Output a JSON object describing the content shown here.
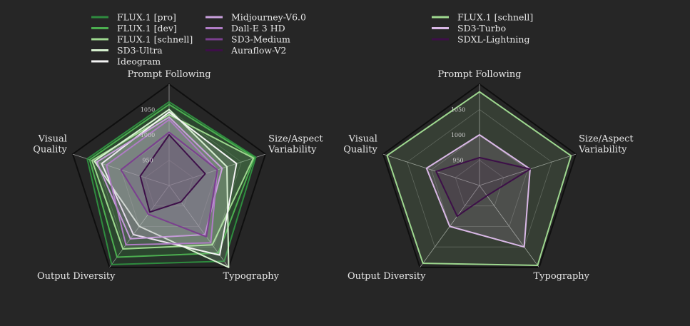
{
  "colors": {
    "background": "#262626",
    "grid": "#0f0f0f",
    "axis_line": "#bdbdbd",
    "text": "#e6e6e6"
  },
  "chart_data": [
    {
      "type": "radar",
      "axes": [
        "Prompt Following",
        "Size/Aspect Variability",
        "Typography",
        "Output Diversity",
        "Visual Quality"
      ],
      "axis_labels": [
        [
          "Prompt Following"
        ],
        [
          "Size/Aspect",
          "Variability"
        ],
        [
          "Typography"
        ],
        [
          "Output Diversity"
        ],
        [
          "Visual",
          "Quality"
        ]
      ],
      "range": [
        900,
        1100
      ],
      "grid_levels": [
        900,
        950,
        1000,
        1050,
        1100
      ],
      "tick_labels": [
        "950",
        "1000",
        "1050"
      ],
      "tick_values": [
        950,
        1000,
        1050
      ],
      "legend_columns": [
        [
          "FLUX.1 [pro]",
          "FLUX.1 [dev]",
          "FLUX.1 [schnell]",
          "SD3-Ultra",
          "Ideogram"
        ],
        [
          "Midjourney-V6.0",
          "Dall-E 3 HD",
          "SD3-Medium",
          "Auraflow-V2"
        ]
      ],
      "series": [
        {
          "name": "FLUX.1 [pro]",
          "color": "#2e8b3e",
          "values": [
            1065,
            1080,
            1085,
            1093,
            1070
          ]
        },
        {
          "name": "FLUX.1 [dev]",
          "color": "#4caf50",
          "values": [
            1060,
            1077,
            1065,
            1075,
            1065
          ]
        },
        {
          "name": "FLUX.1 [schnell]",
          "color": "#9ed88f",
          "values": [
            1040,
            1075,
            1045,
            1055,
            1060
          ]
        },
        {
          "name": "SD3-Ultra",
          "color": "#d6f0cf",
          "values": [
            1050,
            1020,
            1100,
            1000,
            1055
          ]
        },
        {
          "name": "Ideogram",
          "color": "#f4f4f4",
          "values": [
            1045,
            1040,
            1070,
            1020,
            1040
          ]
        },
        {
          "name": "Midjourney-V6.0",
          "color": "#c9a0dc",
          "values": [
            1035,
            1010,
            1020,
            1030,
            1050
          ]
        },
        {
          "name": "Dall-E 3 HD",
          "color": "#b07cc6",
          "values": [
            1030,
            1000,
            1040,
            1045,
            1030
          ]
        },
        {
          "name": "SD3-Medium",
          "color": "#7b3f8f",
          "values": [
            1005,
            1000,
            1025,
            970,
            1000
          ]
        },
        {
          "name": "Auraflow-V2",
          "color": "#3d0f48",
          "values": [
            1000,
            975,
            940,
            965,
            960
          ]
        }
      ]
    },
    {
      "type": "radar",
      "axes": [
        "Prompt Following",
        "Size/Aspect Variability",
        "Typography",
        "Output Diversity",
        "Visual Quality"
      ],
      "axis_labels": [
        [
          "Prompt Following"
        ],
        [
          "Size/Aspect",
          "Variability"
        ],
        [
          "Typography"
        ],
        [
          "Output Diversity"
        ],
        [
          "Visual",
          "Quality"
        ]
      ],
      "range": [
        900,
        1100
      ],
      "grid_levels": [
        900,
        950,
        1000,
        1050,
        1100
      ],
      "tick_labels": [
        "950",
        "1000",
        "1050"
      ],
      "tick_values": [
        950,
        1000,
        1050
      ],
      "legend_columns": [
        [
          "FLUX.1 [schnell]",
          "SD3-Turbo",
          "SDXL-Lightning"
        ]
      ],
      "series": [
        {
          "name": "FLUX.1 [schnell]",
          "color": "#9ed88f",
          "values": [
            1085,
            1090,
            1095,
            1090,
            1092
          ]
        },
        {
          "name": "SD3-Turbo",
          "color": "#d9b8e6",
          "values": [
            1000,
            1005,
            1050,
            1000,
            1010
          ]
        },
        {
          "name": "SDXL-Lightning",
          "color": "#3d0f48",
          "values": [
            955,
            1005,
            925,
            975,
            990
          ]
        }
      ]
    }
  ]
}
